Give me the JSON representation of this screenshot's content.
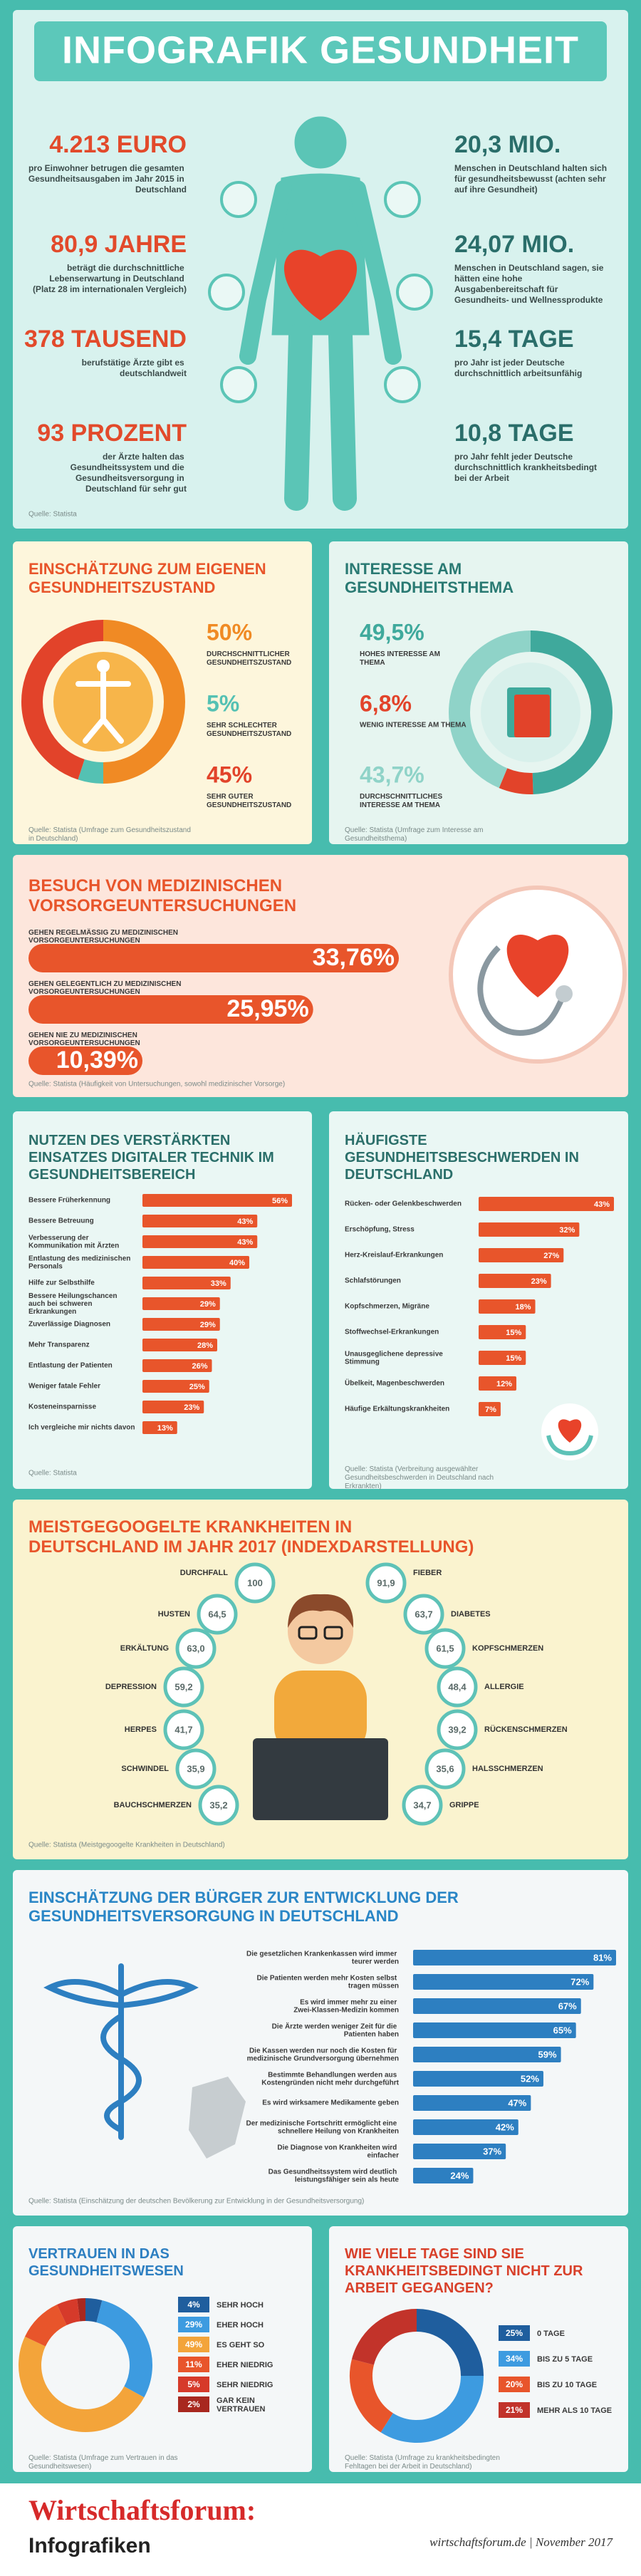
{
  "header": {
    "title": "INFOGRAFIK GESUNDHEIT"
  },
  "stats": {
    "items": [
      {
        "value": "4.213 EURO",
        "text": "pro Einwohner betrugen die gesamten Gesundheitsausgaben im Jahr 2015 in Deutschland"
      },
      {
        "value": "20,3 MIO.",
        "text": "Menschen in Deutschland halten sich für gesundheitsbewusst (achten sehr auf ihre Gesundheit)"
      },
      {
        "value": "80,9 JAHRE",
        "text": "beträgt die durchschnittliche Lebenserwartung in Deutschland (Platz 28 im internationalen Vergleich)"
      },
      {
        "value": "24,07 MIO.",
        "text": "Menschen in Deutschland sagen, sie hätten eine hohe Ausgabenbereitschaft für Gesundheits- und Wellnessprodukte"
      },
      {
        "value": "378 TAUSEND",
        "text": "berufstätige Ärzte gibt es deutschlandweit"
      },
      {
        "value": "15,4 TAGE",
        "text": "pro Jahr ist jeder Deutsche durchschnittlich arbeitsunfähig"
      },
      {
        "value": "93 PROZENT",
        "text": "der Ärzte halten das Gesundheitssystem und die Gesundheitsversorgung in Deutschland für sehr gut"
      },
      {
        "value": "10,8 TAGE",
        "text": "pro Jahr fehlt jeder Deutsche durchschnittlich krankheitsbedingt bei der Arbeit"
      }
    ],
    "source": "Quelle: Statista"
  },
  "chart_data": [
    {
      "type": "donut",
      "title": "EINSCHÄTZUNG ZUM EIGENEN GESUNDHEITSZUSTAND",
      "categories": [
        "DURCHSCHNITTLICHER GESUNDHEITSZUSTAND",
        "SEHR SCHLECHTER GESUNDHEITSZUSTAND",
        "SEHR GUTER GESUNDHEITSZUSTAND"
      ],
      "values": [
        50,
        5,
        45
      ],
      "value_labels": [
        "50%",
        "5%",
        "45%"
      ],
      "colors": [
        "#f08a24",
        "#54c1b3",
        "#e2432a"
      ],
      "source": "Quelle: Statista (Umfrage zum Gesundheitszustand in Deutschland)"
    },
    {
      "type": "donut",
      "title": "INTERESSE AM GESUNDHEITSTHEMA",
      "categories": [
        "HOHES INTERESSE AM THEMA",
        "WENIG INTERESSE AM THEMA",
        "DURCHSCHNITTLICHES INTERESSE AM THEMA"
      ],
      "values": [
        49.5,
        6.8,
        43.7
      ],
      "value_labels": [
        "49,5%",
        "6,8%",
        "43,7%"
      ],
      "colors": [
        "#3fa99c",
        "#e2432a",
        "#8fd3c8"
      ],
      "source": "Quelle: Statista (Umfrage zum Interesse am Gesundheitsthema)"
    },
    {
      "type": "bar",
      "title": "BESUCH VON MEDIZINISCHEN VORSORGEUNTERSUCHUNGEN",
      "categories": [
        "GEHEN REGELMÄSSIG ZU MEDIZINISCHEN VORSORGEUNTERSUCHUNGEN",
        "GEHEN GELEGENTLICH ZU MEDIZINISCHEN VORSORGEUNTERSUCHUNGEN",
        "GEHEN NIE ZU MEDIZINISCHEN VORSORGEUNTERSUCHUNGEN"
      ],
      "values": [
        33.76,
        25.95,
        10.39
      ],
      "value_labels": [
        "33,76%",
        "25,95%",
        "10,39%"
      ],
      "color": "#e8552b",
      "source": "Quelle: Statista (Häufigkeit von Untersuchungen, sowohl medizinischer Vorsorge)"
    },
    {
      "type": "bar",
      "title": "NUTZEN DES VERSTÄRKTEN EINSATZES DIGITALER TECHNIK IM GESUNDHEITSBEREICH",
      "categories": [
        "Bessere Früherkennung",
        "Bessere Betreuung",
        "Verbesserung der Kommunikation mit Ärzten",
        "Entlastung des medizinischen Personals",
        "Hilfe zur Selbsthilfe",
        "Bessere Heilungschancen auch bei schweren Erkrankungen",
        "Zuverlässige Diagnosen",
        "Mehr Transparenz",
        "Entlastung der Patienten",
        "Weniger fatale Fehler",
        "Kosteneinsparnisse",
        "Ich vergleiche mir nichts davon"
      ],
      "values": [
        56,
        43,
        43,
        40,
        33,
        29,
        29,
        28,
        26,
        25,
        23,
        13
      ],
      "value_labels": [
        "56%",
        "43%",
        "43%",
        "40%",
        "33%",
        "29%",
        "29%",
        "28%",
        "26%",
        "25%",
        "23%",
        "13%"
      ],
      "color": "#e8552b",
      "source": "Quelle: Statista"
    },
    {
      "type": "bar",
      "title": "HÄUFIGSTE GESUNDHEITSBESCHWERDEN IN DEUTSCHLAND",
      "categories": [
        "Rücken- oder Gelenkbeschwerden",
        "Erschöpfung, Stress",
        "Herz-Kreislauf-Erkrankungen",
        "Schlafstörungen",
        "Kopfschmerzen, Migräne",
        "Stoffwechsel-Erkrankungen",
        "Unausgeglichene depressive Stimmung",
        "Übelkeit, Magenbeschwerden",
        "Häufige Erkältungskrankheiten"
      ],
      "values": [
        43,
        32,
        27,
        23,
        18,
        15,
        15,
        12,
        7
      ],
      "value_labels": [
        "43%",
        "32%",
        "27%",
        "23%",
        "18%",
        "15%",
        "15%",
        "12%",
        "7%"
      ],
      "color": "#e8552b",
      "source": "Quelle: Statista (Verbreitung ausgewählter Gesundheitsbeschwerden in Deutschland nach Erkrankten)"
    },
    {
      "type": "circles",
      "title": "MEISTGEGOOGELTE KRANKHEITEN IN DEUTSCHLAND IM JAHR 2017 (INDEXDARSTELLUNG)",
      "categories": [
        "DURCHFALL",
        "HUSTEN",
        "ERKÄLTUNG",
        "DEPRESSION",
        "HERPES",
        "SCHWINDEL",
        "BAUCHSCHMERZEN",
        "FIEBER",
        "DIABETES",
        "KOPFSCHMERZEN",
        "ALLERGIE",
        "RÜCKENSCHMERZEN",
        "HALSSCHMERZEN",
        "GRIPPE"
      ],
      "values": [
        100,
        64.5,
        63.0,
        59.2,
        41.7,
        35.9,
        35.2,
        91.9,
        63.7,
        61.5,
        48.4,
        39.2,
        35.6,
        34.7
      ],
      "value_labels": [
        "100",
        "64,5",
        "63,0",
        "59,2",
        "41,7",
        "35,9",
        "35,2",
        "91,9",
        "63,7",
        "61,5",
        "48,4",
        "39,2",
        "35,6",
        "34,7"
      ],
      "color": "#5ec2b7",
      "source": "Quelle: Statista (Meistgegoogelte Krankheiten in Deutschland)"
    },
    {
      "type": "bar",
      "title": "EINSCHÄTZUNG DER BÜRGER ZUR ENTWICKLUNG DER GESUNDHEITSVERSORGUNG IN DEUTSCHLAND",
      "categories": [
        "Die gesetzlichen Krankenkassen wird immer teurer werden",
        "Die Patienten werden mehr Kosten selbst tragen müssen",
        "Es wird immer mehr zu einer Zwei-Klassen-Medizin kommen",
        "Die Ärzte werden weniger Zeit für die Patienten haben",
        "Die Kassen werden nur noch die Kosten für medizinische Grundversorgung übernehmen",
        "Bestimmte Behandlungen werden aus Kostengründen nicht mehr durchgeführt",
        "Es wird wirksamere Medikamente geben",
        "Der medizinische Fortschritt ermöglicht eine schnellere Heilung von Krankheiten",
        "Die Diagnose von Krankheiten wird einfacher",
        "Das Gesundheitssystem wird deutlich leistungsfähiger sein als heute"
      ],
      "values": [
        81,
        72,
        67,
        65,
        59,
        52,
        47,
        42,
        37,
        24
      ],
      "value_labels": [
        "81%",
        "72%",
        "67%",
        "65%",
        "59%",
        "52%",
        "47%",
        "42%",
        "37%",
        "24%"
      ],
      "color": "#2d7fc1",
      "source": "Quelle: Statista (Einschätzung der deutschen Bevölkerung zur Entwicklung in der Gesundheitsversorgung)"
    },
    {
      "type": "donut",
      "title": "VERTRAUEN IN DAS GESUNDHEITSWESEN",
      "categories": [
        "SEHR HOCH",
        "EHER HOCH",
        "ES GEHT SO",
        "EHER NIEDRIG",
        "SEHR NIEDRIG",
        "GAR KEIN VERTRAUEN"
      ],
      "values": [
        4,
        29,
        49,
        11,
        5,
        2
      ],
      "value_labels": [
        "4%",
        "29%",
        "49%",
        "11%",
        "5%",
        "2%"
      ],
      "colors": [
        "#1f5e9e",
        "#3d9be0",
        "#f3a43a",
        "#e8552b",
        "#d63a2a",
        "#a8281f"
      ],
      "source": "Quelle: Statista (Umfrage zum Vertrauen in das Gesundheitswesen)"
    },
    {
      "type": "donut",
      "title": "WIE VIELE TAGE SIND SIE KRANKHEITSBEDINGT NICHT ZUR ARBEIT GEGANGEN?",
      "categories": [
        "0 TAGE",
        "BIS ZU 5 TAGE",
        "BIS ZU 10 TAGE",
        "MEHR ALS 10 TAGE"
      ],
      "values": [
        25,
        34,
        20,
        21
      ],
      "value_labels": [
        "25%",
        "34%",
        "20%",
        "21%"
      ],
      "colors": [
        "#1f5e9e",
        "#3d9be0",
        "#e8552b",
        "#c2332a"
      ],
      "source": "Quelle: Statista (Umfrage zu krankheitsbedingten Fehltagen bei der Arbeit in Deutschland)"
    }
  ],
  "footer": {
    "brand": "Wirtschaftsforum:",
    "sub": "Infografiken",
    "info": "wirtschaftsforum.de | November 2017"
  }
}
